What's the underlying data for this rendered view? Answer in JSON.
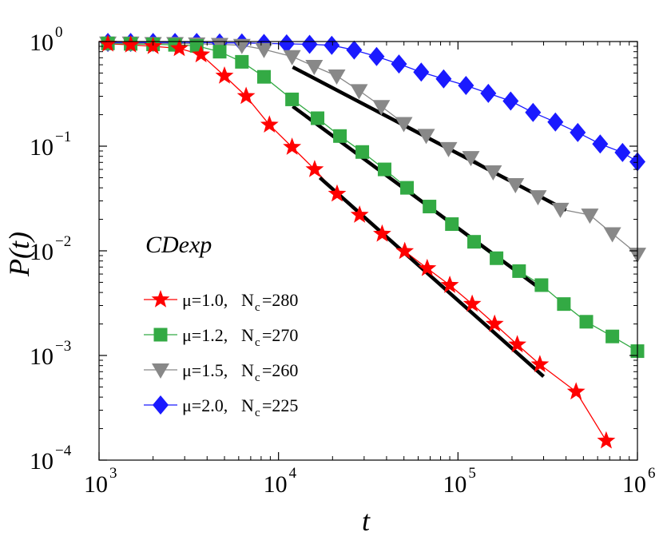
{
  "chart_data": {
    "type": "line",
    "xscale": "log",
    "yscale": "log",
    "xlim": [
      1000,
      1000000
    ],
    "ylim": [
      0.0001,
      1
    ],
    "xlabel": "t",
    "ylabel": "P(t)",
    "xticks": [
      {
        "value": 1000,
        "base": "10",
        "exp": "3"
      },
      {
        "value": 10000,
        "base": "10",
        "exp": "4"
      },
      {
        "value": 100000,
        "base": "10",
        "exp": "5"
      },
      {
        "value": 1000000,
        "base": "10",
        "exp": "6"
      }
    ],
    "yticks": [
      {
        "value": 1,
        "base": "10",
        "exp": "0"
      },
      {
        "value": 0.1,
        "base": "10",
        "exp": "−1"
      },
      {
        "value": 0.01,
        "base": "10",
        "exp": "−2"
      },
      {
        "value": 0.001,
        "base": "10",
        "exp": "−3"
      },
      {
        "value": 0.0001,
        "base": "10",
        "exp": "−4"
      }
    ],
    "legend": {
      "title": "CDexp",
      "position": "lower-left"
    },
    "series": [
      {
        "name": "μ=1.0,  N=280",
        "mu_label": "μ=1.0,",
        "nc_label": "N",
        "nc_sub": "c",
        "nc_value": "=280",
        "color": "#ff0000",
        "marker": "star",
        "x": [
          1120,
          1500,
          2000,
          2800,
          3700,
          5000,
          6600,
          8900,
          11900,
          15900,
          21200,
          28300,
          37800,
          50500,
          67400,
          90000,
          120000,
          160000,
          214000,
          286000,
          455000,
          670000
        ],
        "y": [
          0.95,
          0.93,
          0.9,
          0.86,
          0.75,
          0.47,
          0.3,
          0.16,
          0.098,
          0.06,
          0.035,
          0.022,
          0.0145,
          0.0099,
          0.0068,
          0.0047,
          0.0031,
          0.002,
          0.00127,
          0.00082,
          0.00045,
          0.000153
        ]
      },
      {
        "name": "μ=1.2,  N=270",
        "mu_label": "μ=1.2,",
        "nc_label": "N",
        "nc_sub": "c",
        "nc_value": "=270",
        "color": "#33aa44",
        "marker": "square",
        "x": [
          1120,
          1500,
          2000,
          2650,
          3500,
          4700,
          6250,
          8300,
          11900,
          16500,
          22000,
          29300,
          39000,
          52000,
          69400,
          92500,
          123000,
          164000,
          219000,
          292000,
          389000,
          519000,
          725000,
          1000000
        ],
        "y": [
          0.96,
          0.95,
          0.94,
          0.93,
          0.91,
          0.8,
          0.64,
          0.46,
          0.28,
          0.185,
          0.125,
          0.088,
          0.06,
          0.04,
          0.0265,
          0.018,
          0.0122,
          0.0085,
          0.0064,
          0.0047,
          0.0031,
          0.0021,
          0.00152,
          0.0011
        ]
      },
      {
        "name": "μ=1.5,  N=260",
        "mu_label": "μ=1.5,",
        "nc_label": "N",
        "nc_sub": "c",
        "nc_value": "=260",
        "color": "#888888",
        "marker": "triangle-down",
        "x": [
          1120,
          1500,
          2000,
          2650,
          3500,
          4700,
          6250,
          8300,
          11900,
          15800,
          21100,
          28100,
          37400,
          49900,
          66500,
          88600,
          118000,
          157000,
          209000,
          279000,
          372000,
          543000,
          725000,
          1000000
        ],
        "y": [
          0.97,
          0.97,
          0.96,
          0.96,
          0.95,
          0.94,
          0.92,
          0.84,
          0.72,
          0.58,
          0.47,
          0.34,
          0.24,
          0.165,
          0.127,
          0.095,
          0.078,
          0.057,
          0.043,
          0.033,
          0.025,
          0.022,
          0.0146,
          0.0093
        ]
      },
      {
        "name": "μ=2.0,  N=225",
        "mu_label": "μ=2.0,",
        "nc_label": "N",
        "nc_sub": "c",
        "nc_value": "=225",
        "color": "#1a1aff",
        "marker": "diamond",
        "x": [
          1120,
          1500,
          2000,
          2650,
          3500,
          4700,
          6250,
          8300,
          11100,
          14900,
          19800,
          26400,
          35200,
          46900,
          62400,
          83200,
          110800,
          147600,
          196600,
          262000,
          349000,
          465000,
          620000,
          826000,
          1000000
        ],
        "y": [
          0.98,
          0.98,
          0.98,
          0.98,
          0.98,
          0.97,
          0.97,
          0.96,
          0.95,
          0.94,
          0.92,
          0.83,
          0.72,
          0.61,
          0.51,
          0.44,
          0.38,
          0.32,
          0.27,
          0.21,
          0.17,
          0.135,
          0.105,
          0.087,
          0.071
        ]
      }
    ],
    "fit_lines": [
      {
        "x": [
          17000,
          300000
        ],
        "y": [
          0.05,
          0.00063
        ]
      },
      {
        "x": [
          12000,
          290000
        ],
        "y": [
          0.24,
          0.0043
        ]
      },
      {
        "x": [
          12000,
          400000
        ],
        "y": [
          0.57,
          0.0245
        ]
      }
    ],
    "fit_color": "#000000"
  }
}
